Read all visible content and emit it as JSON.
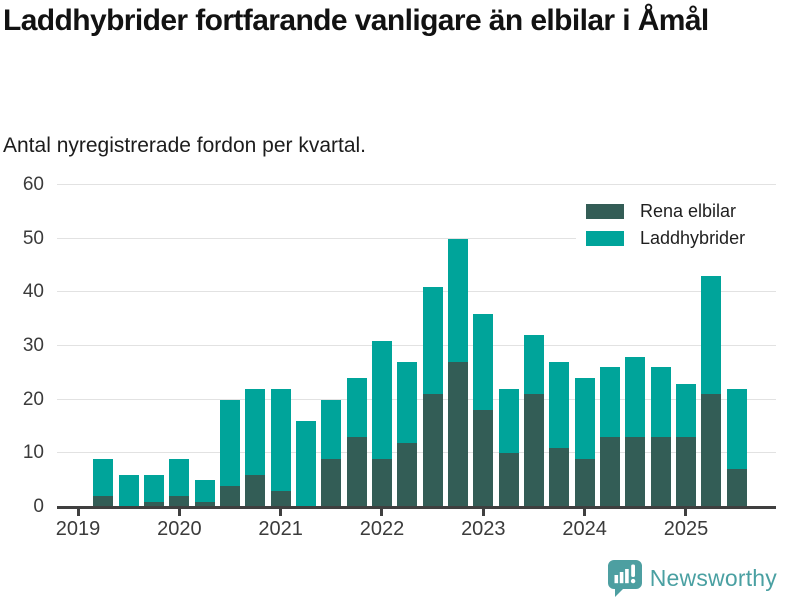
{
  "header": {
    "title": "Laddhybrider fortfarande vanligare än elbilar i Åmål",
    "subtitle": "Antal nyregistrerade fordon per kvartal."
  },
  "legend": {
    "items": [
      {
        "label": "Rena elbilar",
        "color": "#335d56"
      },
      {
        "label": "Laddhybrider",
        "color": "#00a49a"
      }
    ]
  },
  "footer": {
    "brand": "Newsworthy",
    "logo_icon": "newsworthy-chart-speech-bubble-icon",
    "brand_color": "#4aa0a2"
  },
  "chart_data": {
    "type": "bar",
    "stacked": true,
    "title": "Laddhybrider fortfarande vanligare än elbilar i Åmål",
    "subtitle": "Antal nyregistrerade fordon per kvartal.",
    "categories": [
      "2019 Q1",
      "2019 Q2",
      "2019 Q3",
      "2019 Q4",
      "2020 Q1",
      "2020 Q2",
      "2020 Q3",
      "2020 Q4",
      "2021 Q1",
      "2021 Q2",
      "2021 Q3",
      "2021 Q4",
      "2022 Q1",
      "2022 Q2",
      "2022 Q3",
      "2022 Q4",
      "2023 Q1",
      "2023 Q2",
      "2023 Q3",
      "2023 Q4",
      "2024 Q1",
      "2024 Q2",
      "2024 Q3",
      "2024 Q4",
      "2025 Q1",
      "2025 Q2",
      "2025 Q3"
    ],
    "series": [
      {
        "name": "Rena elbilar",
        "color": "#335d56",
        "values": [
          0,
          2,
          0,
          1,
          2,
          1,
          4,
          6,
          3,
          0,
          9,
          13,
          9,
          12,
          21,
          27,
          18,
          10,
          21,
          11,
          9,
          13,
          13,
          13,
          13,
          21,
          7
        ]
      },
      {
        "name": "Laddhybrider",
        "color": "#00a49a",
        "values": [
          0,
          7,
          6,
          5,
          7,
          4,
          16,
          16,
          19,
          16,
          11,
          11,
          22,
          15,
          20,
          23,
          18,
          12,
          11,
          16,
          15,
          13,
          15,
          13,
          10,
          22,
          15
        ]
      }
    ],
    "ylim": [
      0,
      60
    ],
    "yticks": [
      0,
      10,
      20,
      30,
      40,
      50,
      60
    ],
    "xtick_labels": [
      "2019",
      "2020",
      "2021",
      "2022",
      "2023",
      "2024",
      "2025"
    ],
    "grid": "horizontal",
    "legend_position": "top-right"
  }
}
